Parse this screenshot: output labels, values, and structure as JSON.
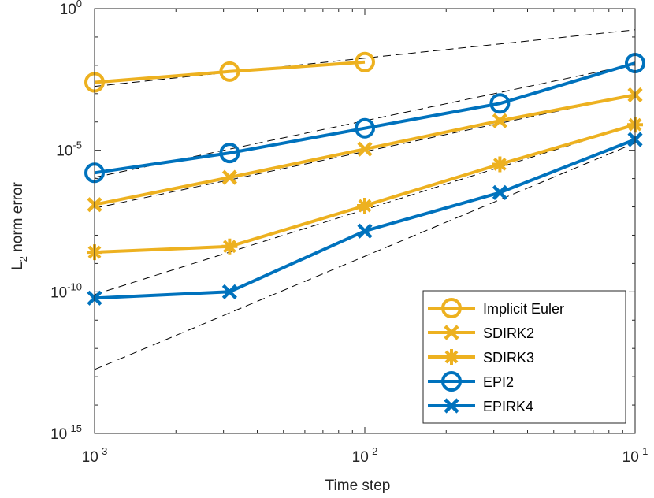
{
  "chart_data": {
    "type": "line",
    "xscale": "log",
    "yscale": "log",
    "xlim": [
      0.001,
      0.1
    ],
    "ylim": [
      1e-15,
      1
    ],
    "xlabel": "Time step",
    "ylabel": "L",
    "ylabel_subscript": "2",
    "ylabel_rest": " norm error",
    "x_ticks": [
      {
        "base": "10",
        "exp": "-3",
        "value": 0.001
      },
      {
        "base": "10",
        "exp": "-2",
        "value": 0.01
      },
      {
        "base": "10",
        "exp": "-1",
        "value": 0.1
      }
    ],
    "y_ticks": [
      {
        "base": "10",
        "exp": "0",
        "value": 1
      },
      {
        "base": "10",
        "exp": "-5",
        "value": 1e-05
      },
      {
        "base": "10",
        "exp": "-10",
        "value": 1e-10
      },
      {
        "base": "10",
        "exp": "-15",
        "value": 1e-15
      }
    ],
    "series": [
      {
        "name": "Implicit Euler",
        "color": "#EDB120",
        "marker": "circle",
        "x": [
          0.001,
          0.00316,
          0.01
        ],
        "y": [
          0.0025,
          0.006,
          0.013
        ]
      },
      {
        "name": "SDIRK2",
        "color": "#EDB120",
        "marker": "x",
        "x": [
          0.001,
          0.00316,
          0.01,
          0.0316,
          0.1
        ],
        "y": [
          1.2e-07,
          1.1e-06,
          1.1e-05,
          0.00011,
          0.0009
        ]
      },
      {
        "name": "SDIRK3",
        "color": "#EDB120",
        "marker": "asterisk",
        "x": [
          0.001,
          0.00316,
          0.01,
          0.0316,
          0.1
        ],
        "y": [
          2.5e-09,
          4e-09,
          1.1e-07,
          3.2e-06,
          8e-05
        ]
      },
      {
        "name": "EPI2",
        "color": "#0072BD",
        "marker": "circle",
        "x": [
          0.001,
          0.00316,
          0.01,
          0.0316,
          0.1
        ],
        "y": [
          1.6e-06,
          8e-06,
          6e-05,
          0.00045,
          0.012
        ]
      },
      {
        "name": "EPIRK4",
        "color": "#0072BD",
        "marker": "x",
        "x": [
          0.001,
          0.00316,
          0.01,
          0.0316,
          0.1
        ],
        "y": [
          6e-11,
          1e-10,
          1.4e-08,
          3.2e-07,
          2.4e-05
        ]
      }
    ],
    "reference_lines": [
      {
        "x": [
          0.001,
          0.1
        ],
        "y": [
          0.0018,
          0.18
        ]
      },
      {
        "x": [
          0.001,
          0.1
        ],
        "y": [
          1.1e-06,
          0.011
        ]
      },
      {
        "x": [
          0.001,
          0.1
        ],
        "y": [
          9e-08,
          0.0009
        ]
      },
      {
        "x": [
          0.001,
          0.1
        ],
        "y": [
          8e-11,
          8e-05
        ]
      },
      {
        "x": [
          0.001,
          0.1
        ],
        "y": [
          1.8e-13,
          1.8e-05
        ]
      }
    ],
    "legend_position": "bottom-right"
  }
}
